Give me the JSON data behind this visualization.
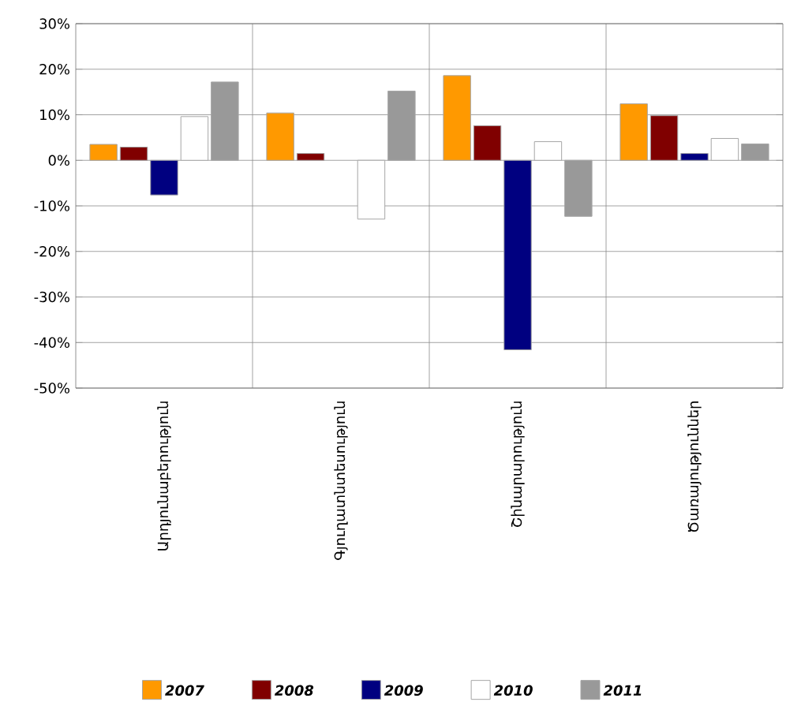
{
  "chart_data": {
    "type": "bar",
    "categories": [
      "Արդյունաբերություն",
      "Գյուղատնտեսություն",
      "Շինարարություն",
      "Ծառայություններ"
    ],
    "series": [
      {
        "name": "2007",
        "color": "#ff9900",
        "values": [
          3.5,
          10.4,
          18.6,
          12.4
        ]
      },
      {
        "name": "2008",
        "color": "#800000",
        "values": [
          2.9,
          1.5,
          7.6,
          9.8
        ]
      },
      {
        "name": "2009",
        "color": "#000080",
        "values": [
          -7.6,
          null,
          -41.6,
          1.5
        ]
      },
      {
        "name": "2010",
        "color": "#ffffff",
        "values": [
          9.6,
          -12.9,
          4.1,
          4.8
        ]
      },
      {
        "name": "2011",
        "color": "#999999",
        "values": [
          17.2,
          15.2,
          -12.3,
          3.6
        ]
      }
    ],
    "ylim": [
      -50,
      30
    ],
    "yticks": [
      {
        "value": -50,
        "label": "-50%"
      },
      {
        "value": -40,
        "label": "-40%"
      },
      {
        "value": -30,
        "label": "-30%"
      },
      {
        "value": -20,
        "label": "-20%"
      },
      {
        "value": -10,
        "label": "-10%"
      },
      {
        "value": 0,
        "label": "0%"
      },
      {
        "value": 10,
        "label": "10%"
      },
      {
        "value": 20,
        "label": "20%"
      },
      {
        "value": 30,
        "label": "30%"
      }
    ],
    "grid": true,
    "legend": "bottom"
  }
}
